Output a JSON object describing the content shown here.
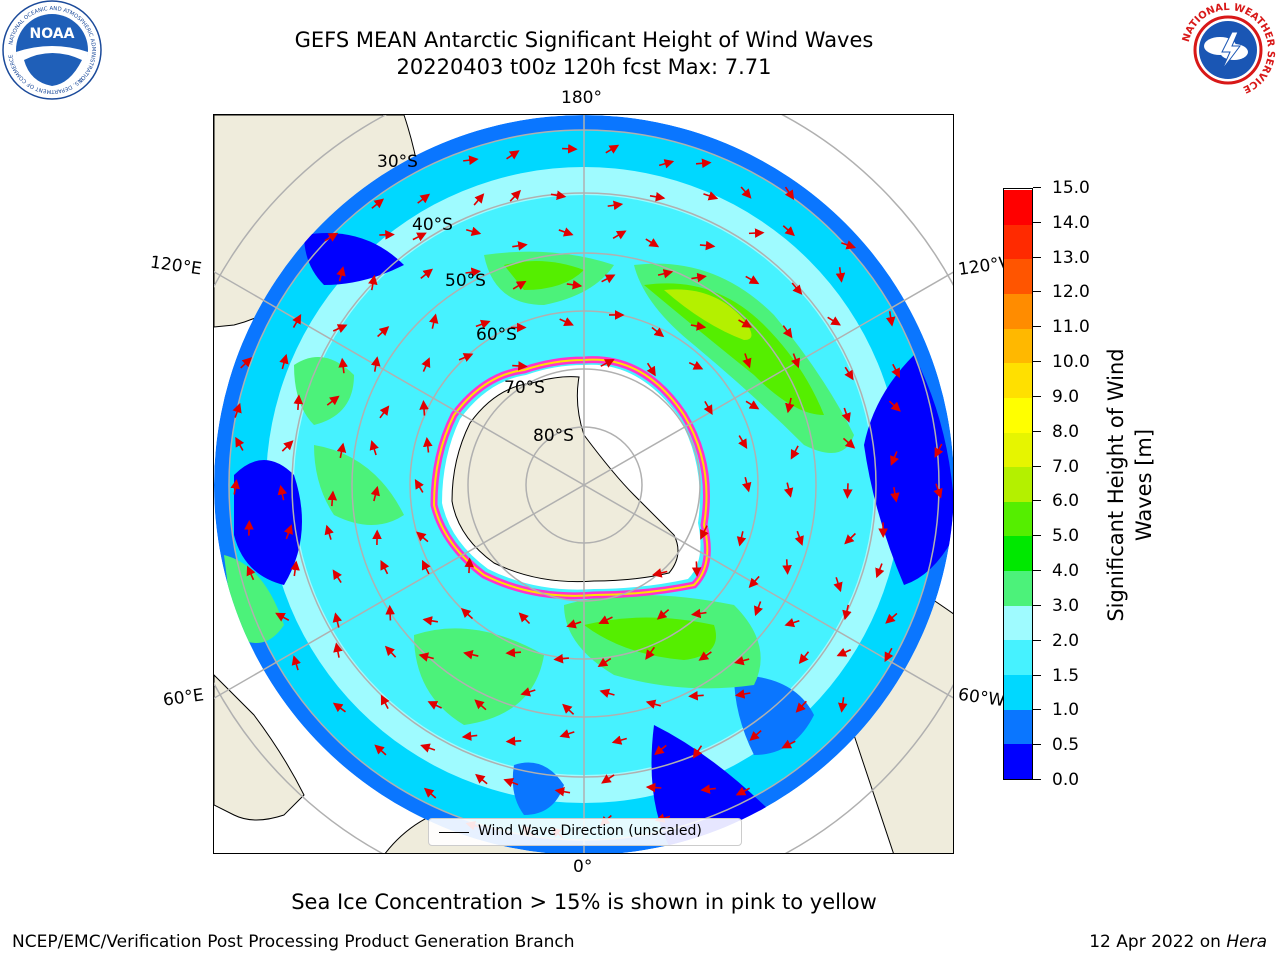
{
  "title": {
    "line1": "GEFS MEAN Antarctic Significant Height of Wind Waves",
    "line2": "20220403 t00z 120h fcst   Max: 7.71"
  },
  "map": {
    "longitude_labels": {
      "top": "180°",
      "bottom": "0°",
      "upper_left": "120°E",
      "upper_right": "120°W",
      "lower_left": "60°E",
      "lower_right": "60°W"
    },
    "latitude_labels": [
      "30°S",
      "40°S",
      "50°S",
      "60°S",
      "70°S",
      "80°S"
    ],
    "legend_label": "Wind Wave Direction (unscaled)",
    "colors": {
      "land": "#efecdc",
      "grid": "#b0b0b0",
      "arrow": "#e00000",
      "ice": "#ff33cc"
    }
  },
  "colorbar": {
    "title_line1": "Significant Height of Wind",
    "title_line2": "Waves [m]",
    "tick_labels": [
      "0.0",
      "0.5",
      "1.0",
      "1.5",
      "2.0",
      "3.0",
      "4.0",
      "5.0",
      "6.0",
      "7.0",
      "8.0",
      "9.0",
      "10.0",
      "11.0",
      "12.0",
      "13.0",
      "14.0",
      "15.0"
    ],
    "colors": [
      "#0000ff",
      "#0a76ff",
      "#00d8ff",
      "#46f2ff",
      "#9ffbff",
      "#4cf27a",
      "#00e800",
      "#55ee00",
      "#b4f000",
      "#e6f500",
      "#ffff00",
      "#ffe000",
      "#ffb800",
      "#ff8c00",
      "#ff5500",
      "#ff2a00",
      "#ff0000"
    ]
  },
  "caption": "Sea Ice Concentration > 15% is shown in pink to yellow",
  "footer": {
    "left": "NCEP/EMC/Verification Post Processing Product Generation Branch",
    "date": "12 Apr 2022 on",
    "system": "Hera"
  },
  "logos": {
    "noaa": {
      "center_text": "NOAA",
      "ring_top": "NATIONAL OCEANIC AND ATMOSPHERIC ADMINISTRATION",
      "ring_bottom": "U.S. DEPARTMENT OF COMMERCE"
    },
    "nws": {
      "ring_top": "NATIONAL WEATHER SERVICE"
    }
  }
}
